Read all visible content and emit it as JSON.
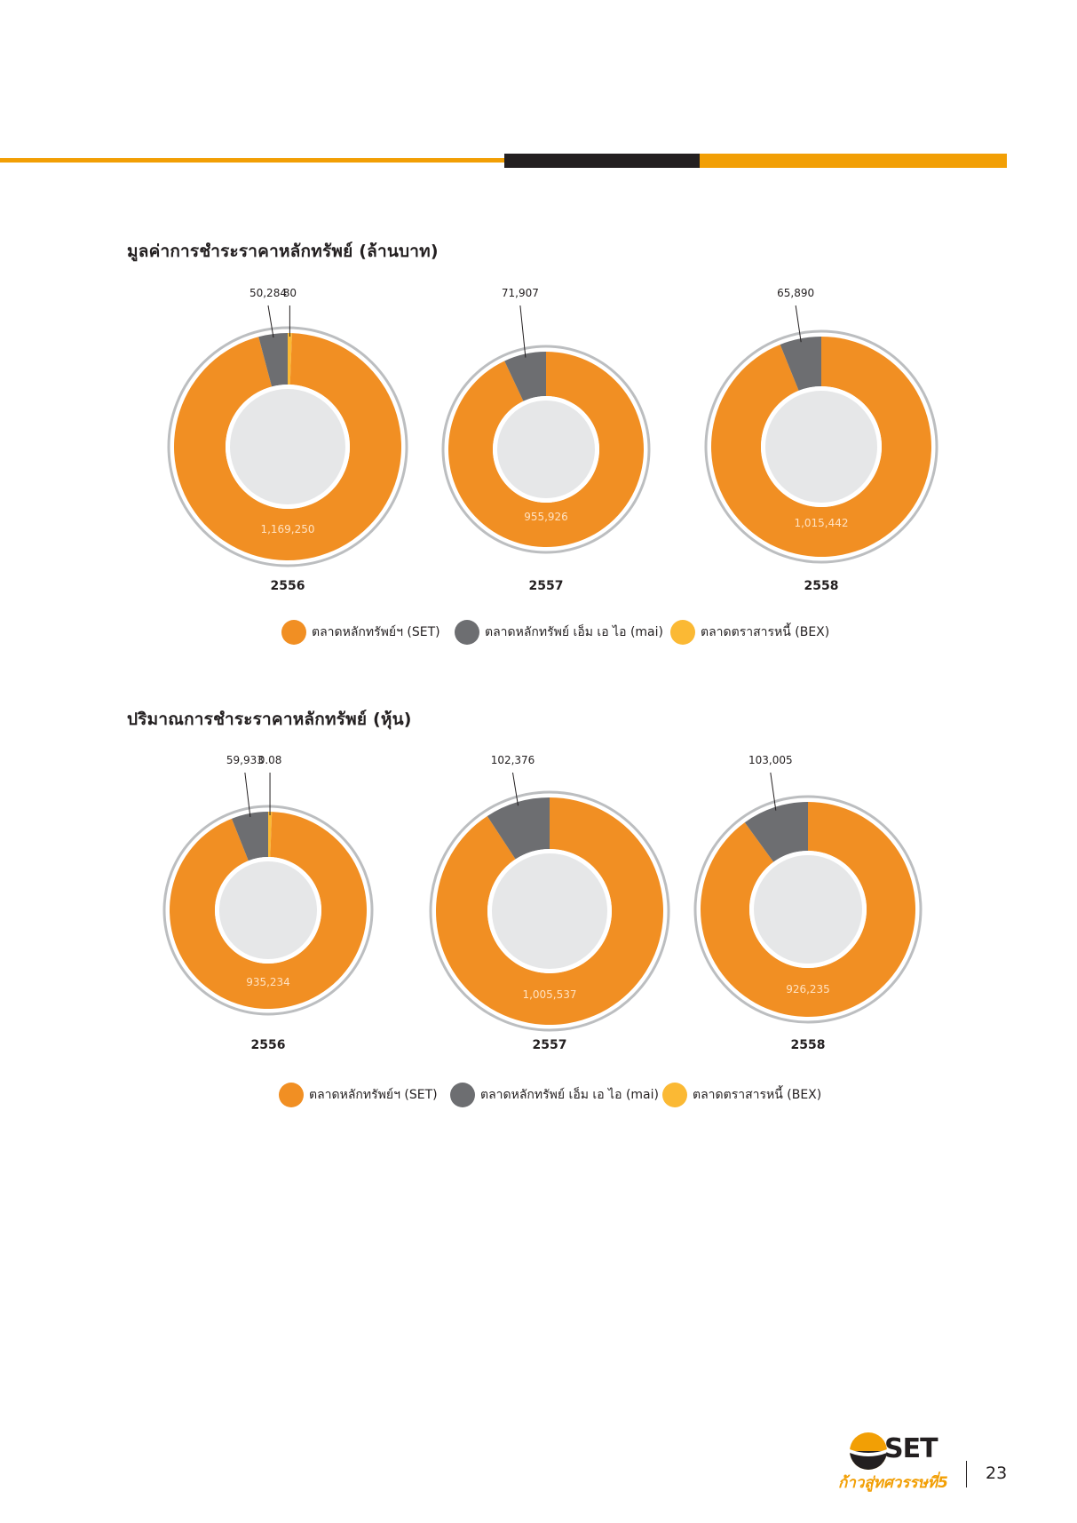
{
  "page_number": "23",
  "logo": {
    "brand": "SET",
    "tagline": "ก้าวสู่ทศวรรษที่5"
  },
  "colors": {
    "set": "#f18f23",
    "mai": "#6d6e71",
    "bex": "#fbb934",
    "inner": "#e6e7e8",
    "ring": "#bcbec0",
    "accent": "#f29f05"
  },
  "legend": [
    {
      "label": "ตลาดหลักทรัพย์ฯ (SET)",
      "color": "#f18f23"
    },
    {
      "label": "ตลาดหลักทรัพย์ เอ็ม เอ ไอ (mai)",
      "color": "#6d6e71"
    },
    {
      "label": "ตลาดตราสารหนี้ (BEX)",
      "color": "#fbb934"
    }
  ],
  "chart_data": [
    {
      "type": "pie",
      "title": "มูลค่าการชำระราคาหลักทรัพย์ (ล้านบาท)",
      "categories": [
        "2556",
        "2557",
        "2558"
      ],
      "series": [
        {
          "name": "ตลาดหลักทรัพย์ฯ (SET)",
          "values": [
            1169250,
            955926,
            1015442
          ],
          "labels": [
            "1,169,250",
            "955,926",
            "1,015,442"
          ]
        },
        {
          "name": "ตลาดหลักทรัพย์ เอ็ม เอ ไอ (mai)",
          "values": [
            50284,
            71907,
            65890
          ],
          "labels": [
            "50,284",
            "71,907",
            "65,890"
          ]
        },
        {
          "name": "ตลาดตราสารหนี้ (BEX)",
          "values": [
            80,
            0,
            0
          ],
          "labels": [
            "80",
            "",
            ""
          ]
        }
      ]
    },
    {
      "type": "pie",
      "title": "ปริมาณการชำระราคาหลักทรัพย์ (หุ้น)",
      "categories": [
        "2556",
        "2557",
        "2558"
      ],
      "series": [
        {
          "name": "ตลาดหลักทรัพย์ฯ (SET)",
          "values": [
            935234,
            1005537,
            926235
          ],
          "labels": [
            "935,234",
            "1,005,537",
            "926,235"
          ]
        },
        {
          "name": "ตลาดหลักทรัพย์ เอ็ม เอ ไอ (mai)",
          "values": [
            59933,
            102376,
            103005
          ],
          "labels": [
            "59,933",
            "102,376",
            "103,005"
          ]
        },
        {
          "name": "ตลาดตราสารหนี้ (BEX)",
          "values": [
            0.08,
            0,
            0
          ],
          "labels": [
            "0.08",
            "",
            ""
          ]
        }
      ]
    }
  ]
}
